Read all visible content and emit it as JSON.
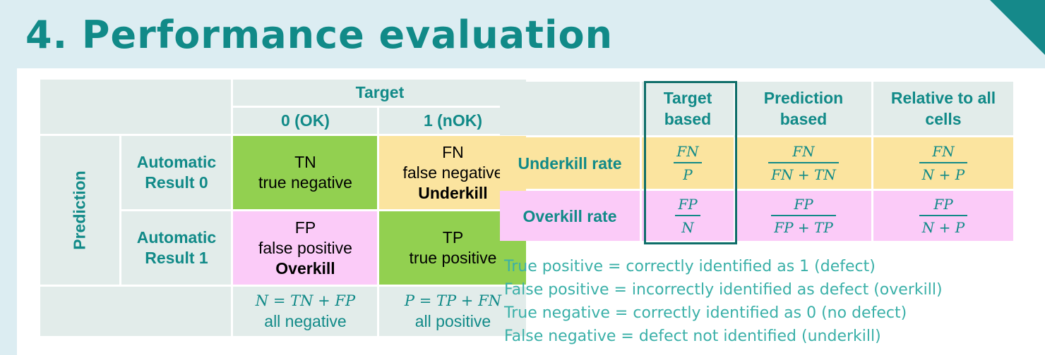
{
  "title": "4. Performance evaluation",
  "confusion_matrix": {
    "target_header": "Target",
    "target_col0": "0 (OK)",
    "target_col1": "1 (nOK)",
    "prediction_label": "Prediction",
    "row0_label_line1": "Automatic",
    "row0_label_line2": "Result 0",
    "row1_label_line1": "Automatic",
    "row1_label_line2": "Result 1",
    "tn": {
      "abbr": "TN",
      "desc": "true negative"
    },
    "fn": {
      "abbr": "FN",
      "desc": "false negative",
      "note": "Underkill"
    },
    "fp": {
      "abbr": "FP",
      "desc": "false positive",
      "note": "Overkill"
    },
    "tp": {
      "abbr": "TP",
      "desc": "true positive"
    },
    "sum_negative_formula": "N = TN + FP",
    "sum_negative_label": "all negative",
    "sum_positive_formula": "P = TP + FN",
    "sum_positive_label": "all positive"
  },
  "rate_table": {
    "headers": [
      {
        "line1": "Target",
        "line2": "based"
      },
      {
        "line1": "Prediction",
        "line2": "based"
      },
      {
        "line1": "Relative to all",
        "line2": "cells"
      }
    ],
    "rows": [
      {
        "label": "Underkill rate",
        "cells": [
          {
            "num": "FN",
            "den": "P"
          },
          {
            "num": "FN",
            "den": "FN + TN"
          },
          {
            "num": "FN",
            "den": "N + P"
          }
        ]
      },
      {
        "label": "Overkill rate",
        "cells": [
          {
            "num": "FP",
            "den": "N"
          },
          {
            "num": "FP",
            "den": "FP + TP"
          },
          {
            "num": "FP",
            "den": "N + P"
          }
        ]
      }
    ]
  },
  "definitions": [
    "True positive = correctly identified as 1 (defect)",
    "False positive = incorrectly identified as defect (overkill)",
    "True negative = correctly identified as 0 (no defect)",
    "False negative = defect not identified (underkill)"
  ],
  "colors": {
    "teal": "#118a88",
    "green": "#92d050",
    "yellow": "#fbe49f",
    "pink": "#fbcbf8",
    "gray": "#e2ecea",
    "background": "#dcedf2"
  }
}
